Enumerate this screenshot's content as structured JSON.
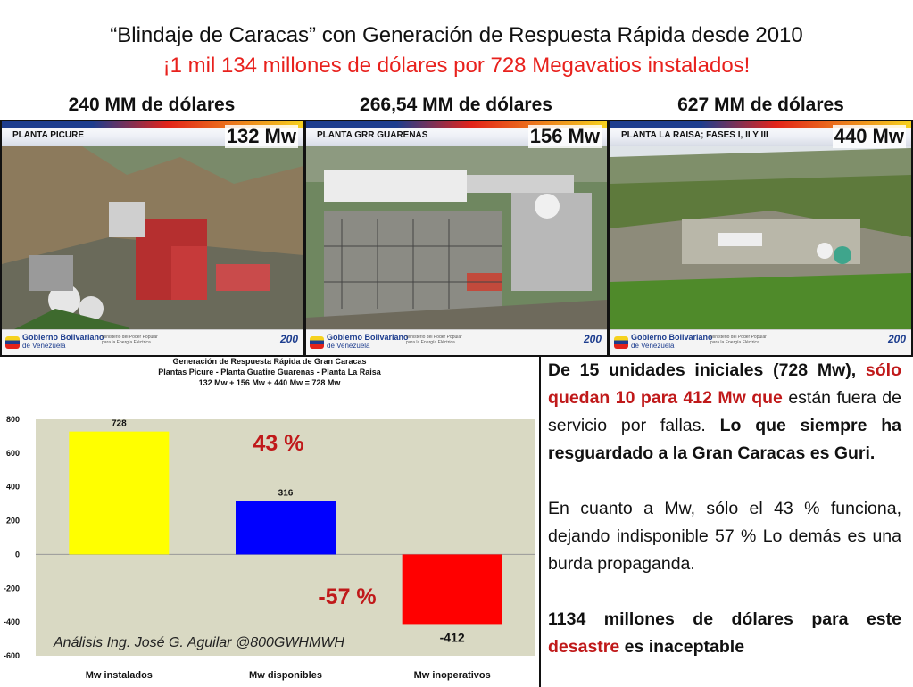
{
  "header": {
    "title": "“Blindaje de Caracas” con Generación de Respuesta Rápida desde 2010",
    "subtitle": "¡1 mil 134 millones de dólares por 728 Megavatios instalados!"
  },
  "plants": [
    {
      "cost": "240 MM de dólares",
      "name": "PLANTA PICURE",
      "mw": "132 Mw"
    },
    {
      "cost": "266,54 MM de dólares",
      "name": "PLANTA GRR GUARENAS",
      "mw": "156 Mw"
    },
    {
      "cost": "627 MM de dólares",
      "name": "PLANTA LA RAISA; FASES I, II Y III",
      "mw": "440 Mw"
    }
  ],
  "photo_footer": {
    "gov_line1": "Gobierno Bolivariano",
    "gov_line2": "de Venezuela",
    "ministry_line1": "Ministerio del Poder Popular",
    "ministry_line2": "para la Energía Eléctrica",
    "logo": "200"
  },
  "chart_data": {
    "type": "bar",
    "title": "Generación de Respuesta Rápida de Gran Caracas",
    "subtitle": "Plantas Picure - Planta Guatire Guarenas - Planta La Raisa",
    "subtitle2": "132 Mw + 156 Mw + 440 Mw = 728 Mw",
    "categories": [
      "Mw instalados",
      "Mw disponibles",
      "Mw inoperativos"
    ],
    "values": [
      728,
      316,
      -412
    ],
    "value_labels": [
      "728",
      "316",
      "-412"
    ],
    "colors": [
      "#ffff00",
      "#0000ff",
      "#ff0000"
    ],
    "ylim": [
      -600,
      800
    ],
    "yticks": [
      "800",
      "600",
      "400",
      "200",
      "0",
      "-200",
      "-400",
      "-600"
    ],
    "annotations": [
      {
        "text": "43 %",
        "color": "#c0191a"
      },
      {
        "text": "-57 %",
        "color": "#c0191a"
      }
    ],
    "plot_background": "#d9d9c3",
    "grid": false
  },
  "credit": "Análisis Ing. José G. Aguilar @800GWHMWH",
  "panel": {
    "p1_a": "De 15 unidades iniciales (728 Mw),",
    "p1_b": "sólo quedan 10 para 412 Mw que",
    "p1_c": "están fuera de servicio por fallas.",
    "p1_d": "Lo que siempre ha resguardado a la Gran Caracas es Guri.",
    "p2": "En cuanto a Mw, sólo el 43 % funciona, dejando indisponible 57 % Lo demás es una burda propaganda.",
    "p3_a": "1134 millones de dólares para este",
    "p3_b": "desastre",
    "p3_c": "es inaceptable"
  }
}
